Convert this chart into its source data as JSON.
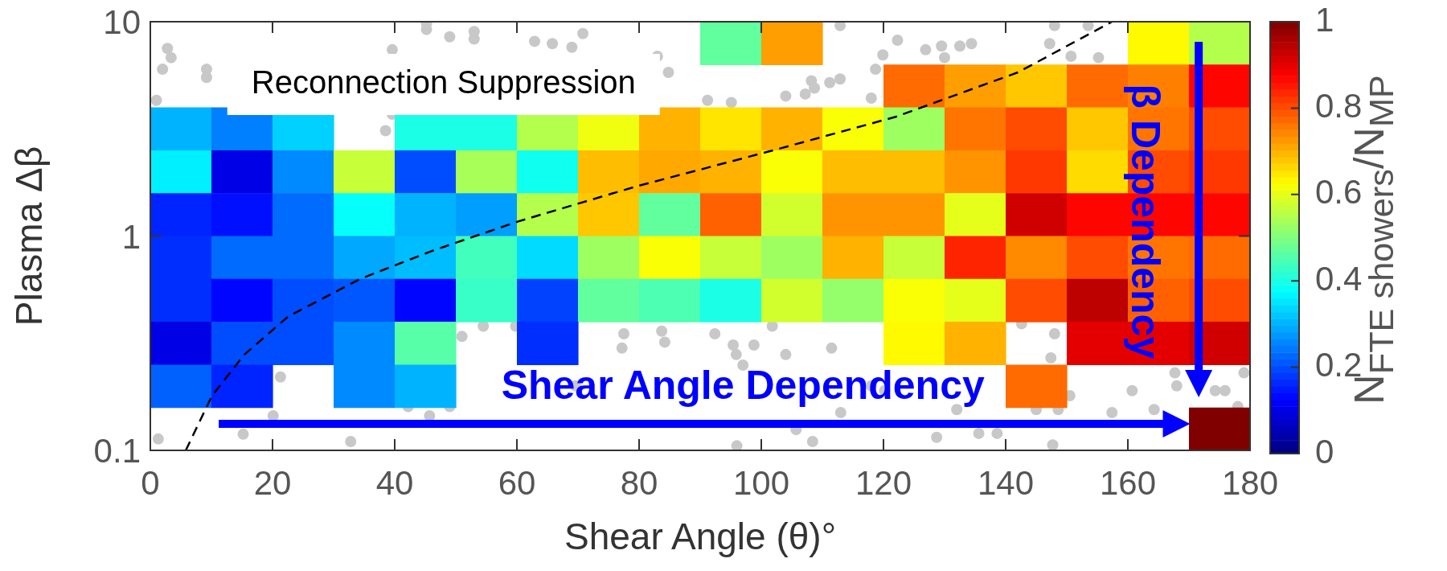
{
  "chart_data": {
    "type": "heatmap",
    "xlabel": "Shear Angle (θ)°",
    "ylabel": "Plasma Δβ",
    "clabel": "N$_{FTE showers}$/N$_{MP}$",
    "cells": [
      [
        null,
        null,
        null,
        null,
        null,
        null,
        null,
        null,
        null,
        0.47,
        0.72,
        null,
        null,
        null,
        null,
        null,
        0.63,
        0.55
      ],
      [
        null,
        null,
        null,
        null,
        null,
        null,
        null,
        null,
        null,
        null,
        null,
        null,
        0.77,
        0.72,
        0.68,
        0.77,
        0.75,
        0.87
      ],
      [
        0.3,
        0.25,
        0.33,
        null,
        0.4,
        0.4,
        0.55,
        0.61,
        0.7,
        0.65,
        0.7,
        0.62,
        0.53,
        0.76,
        0.8,
        0.68,
        0.76,
        0.8
      ],
      [
        0.36,
        0.1,
        0.26,
        0.57,
        0.2,
        0.54,
        0.39,
        0.69,
        0.71,
        0.7,
        0.62,
        0.69,
        0.69,
        0.73,
        0.82,
        0.66,
        0.8,
        0.82
      ],
      [
        0.16,
        0.14,
        0.23,
        0.38,
        0.3,
        0.28,
        0.55,
        0.68,
        0.47,
        0.78,
        0.58,
        0.73,
        0.73,
        0.6,
        0.92,
        0.87,
        0.87,
        0.87
      ],
      [
        0.17,
        0.23,
        0.23,
        0.29,
        0.31,
        0.44,
        0.34,
        0.53,
        0.62,
        0.57,
        0.53,
        0.7,
        0.57,
        0.84,
        0.74,
        0.8,
        0.76,
        0.77
      ],
      [
        0.17,
        0.13,
        0.2,
        0.21,
        0.13,
        0.43,
        0.19,
        0.47,
        0.45,
        0.4,
        0.58,
        0.52,
        0.62,
        0.6,
        0.8,
        0.94,
        0.78,
        0.8
      ],
      [
        0.1,
        0.2,
        0.2,
        0.26,
        0.46,
        null,
        0.17,
        null,
        null,
        null,
        null,
        null,
        0.63,
        0.7,
        null,
        0.9,
        0.9,
        0.92
      ],
      [
        0.22,
        0.16,
        null,
        0.26,
        0.3,
        null,
        null,
        null,
        null,
        null,
        null,
        null,
        null,
        null,
        0.77,
        null,
        null,
        null
      ],
      [
        null,
        null,
        null,
        null,
        null,
        null,
        null,
        null,
        null,
        null,
        null,
        null,
        null,
        null,
        null,
        null,
        null,
        1
      ]
    ],
    "clim": [
      0,
      1
    ],
    "cticks": [
      0,
      0.2,
      0.4,
      0.6,
      0.8,
      1
    ],
    "xlim": [
      0,
      180
    ],
    "xticks": [
      0,
      20,
      40,
      60,
      80,
      100,
      120,
      140,
      160,
      180
    ],
    "ylim": [
      0.1,
      10
    ],
    "yticks": [
      0.1,
      1,
      10
    ],
    "log": "y",
    "annotations": [
      "Reconnection Suppression",
      "Shear Angle Dependency",
      "β Dependency"
    ],
    "series": [
      {
        "type": "scatter",
        "color": "#c8c8c8",
        "marker": "circle",
        "x": [
          2.8,
          3.4,
          2,
          9.2,
          9.2,
          1,
          39.6,
          45.2,
          45.2,
          49,
          53,
          53,
          62.9,
          65.8,
          69,
          70.8,
          38.5,
          39.6,
          54.5,
          59.8,
          51,
          77.5,
          77.2,
          21.3,
          20.1,
          15.2,
          1.3,
          32.8,
          42.2,
          45.7,
          49,
          69.6,
          112.9,
          122.3,
          126.9,
          129.5,
          130,
          132.5,
          134.4,
          119.9,
          118.7,
          148,
          147.2,
          150.7,
          153.5,
          155.2,
          84.8,
          83,
          91.2,
          95.1,
          104,
          107.2,
          108.7,
          111.2,
          112.9,
          108.2,
          118,
          83.7,
          84.2,
          92.4,
          95.4,
          98.8,
          95.9,
          104,
          111.5,
          101.8,
          97,
          142.6,
          148,
          147.4,
          160.7,
          164.3,
          157.4,
          148.6,
          145,
          150.5,
          132,
          138.6,
          135.6,
          128.7,
          120.2,
          118,
          108.4,
          96,
          105.7,
          147.7,
          113,
          167.7,
          174.3,
          175.9,
          179,
          178,
          168
        ],
        "values": [
          7.5,
          6.8,
          6,
          6,
          5.5,
          4.3,
          7.4,
          9.8,
          9.2,
          8.5,
          9,
          8.3,
          8.1,
          7.9,
          7.6,
          8.8,
          3.1,
          3.7,
          0.38,
          0.38,
          0.34,
          0.35,
          0.3,
          0.22,
          0.145,
          0.119,
          0.113,
          0.11,
          0.16,
          0.145,
          0.16,
          0.2,
          9.6,
          8.2,
          7.4,
          7.7,
          6.8,
          7.7,
          7.9,
          7,
          6,
          9.6,
          7.9,
          6.9,
          9.6,
          6.8,
          5.8,
          6.9,
          4.3,
          4.2,
          4.5,
          4.6,
          4.9,
          5.2,
          5.4,
          5.3,
          4.4,
          0.36,
          0.32,
          0.35,
          0.31,
          0.31,
          0.28,
          0.28,
          0.3,
          0.38,
          0.25,
          0.39,
          0.35,
          0.27,
          0.19,
          0.155,
          0.15,
          0.155,
          0.155,
          0.18,
          0.155,
          0.12,
          0.12,
          0.115,
          0.19,
          0.2,
          0.11,
          0.105,
          0.125,
          0.106,
          0.15,
          0.23,
          0.19,
          0.19,
          0.23,
          0.16,
          0.2
        ]
      },
      {
        "type": "line",
        "color": "#000000",
        "marker": "none",
        "line_style": "dashed",
        "x": [
          5.8,
          10.1,
          15.4,
          22.5,
          34.3,
          46,
          60.2,
          79.4,
          102.6,
          122,
          142,
          157.4
        ],
        "values": [
          0.1,
          0.18,
          0.28,
          0.42,
          0.63,
          0.85,
          1.17,
          1.7,
          2.54,
          3.6,
          5.8,
          10
        ]
      }
    ]
  }
}
